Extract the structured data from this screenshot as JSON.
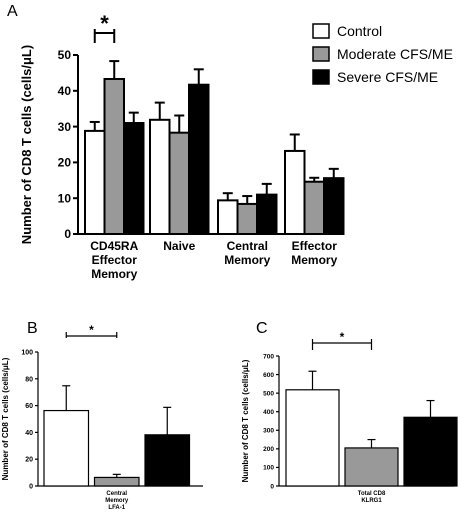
{
  "panel_labels": [
    "A",
    "B",
    "C"
  ],
  "legend": {
    "entries": [
      {
        "label": "Control",
        "color": "#ffffff"
      },
      {
        "label": "Moderate  CFS/ME",
        "color": "#999999"
      },
      {
        "label": "Severe CFS/ME",
        "color": "#000000"
      }
    ]
  },
  "chart_data": [
    {
      "id": "A",
      "type": "bar",
      "title": "",
      "xlabel": "",
      "ylabel": "Number of CD8  T cells (cells/μL)",
      "ylim": [
        0,
        50
      ],
      "yticks": [
        0,
        10,
        20,
        30,
        40,
        50
      ],
      "categories": [
        [
          "CD45RA",
          "Effector",
          "Memory"
        ],
        [
          "Naive"
        ],
        [
          "Central",
          "Memory"
        ],
        [
          "Effector",
          "Memory"
        ]
      ],
      "series": [
        {
          "name": "Control",
          "color": "#ffffff",
          "values": [
            28.8,
            31.9,
            9.4,
            23.2
          ],
          "errors": [
            2.5,
            4.8,
            2.0,
            4.6
          ]
        },
        {
          "name": "Moderate  CFS/ME",
          "color": "#999999",
          "values": [
            43.3,
            28.3,
            8.4,
            14.6
          ],
          "errors": [
            5.0,
            4.8,
            2.2,
            1.1
          ]
        },
        {
          "name": "Severe CFS/ME",
          "color": "#000000",
          "values": [
            31.0,
            41.7,
            11.0,
            15.6
          ],
          "errors": [
            2.9,
            4.3,
            3.0,
            2.6
          ]
        }
      ],
      "annotations": [
        {
          "text": "*",
          "between": [
            0,
            1
          ],
          "category": 0
        }
      ],
      "grid": false,
      "legend_position": "top-right"
    },
    {
      "id": "B",
      "type": "bar",
      "title": "",
      "xlabel": "",
      "ylabel": "Number of CD8 T cells (cells/μL)",
      "ylim": [
        0,
        100
      ],
      "yticks": [
        0,
        20,
        40,
        60,
        80,
        100
      ],
      "categories": [
        [
          "Central",
          "Memory",
          "LFA-1"
        ]
      ],
      "series": [
        {
          "name": "Control",
          "color": "#ffffff",
          "values": [
            56.3
          ],
          "errors": [
            18.5
          ]
        },
        {
          "name": "Moderate  CFS/ME",
          "color": "#999999",
          "values": [
            6.4
          ],
          "errors": [
            2.3
          ]
        },
        {
          "name": "Severe CFS/ME",
          "color": "#000000",
          "values": [
            38.2
          ],
          "errors": [
            20.5
          ]
        }
      ],
      "annotations": [
        {
          "text": "*",
          "between": [
            0,
            1
          ],
          "category": 0
        }
      ],
      "grid": false
    },
    {
      "id": "C",
      "type": "bar",
      "title": "",
      "xlabel": "",
      "ylabel": "Number of CD8 T cells (cells/μL)",
      "ylim": [
        0,
        700
      ],
      "yticks": [
        0,
        100,
        200,
        300,
        400,
        500,
        600,
        700
      ],
      "categories": [
        [
          "Total CD8",
          "KLRG1"
        ]
      ],
      "series": [
        {
          "name": "Control",
          "color": "#ffffff",
          "values": [
            518
          ],
          "errors": [
            100
          ]
        },
        {
          "name": "Moderate  CFS/ME",
          "color": "#999999",
          "values": [
            205
          ],
          "errors": [
            45
          ]
        },
        {
          "name": "Severe CFS/ME",
          "color": "#000000",
          "values": [
            370
          ],
          "errors": [
            90
          ]
        }
      ],
      "annotations": [
        {
          "text": "*",
          "between": [
            0,
            1
          ],
          "category": 0
        }
      ],
      "grid": false
    }
  ]
}
